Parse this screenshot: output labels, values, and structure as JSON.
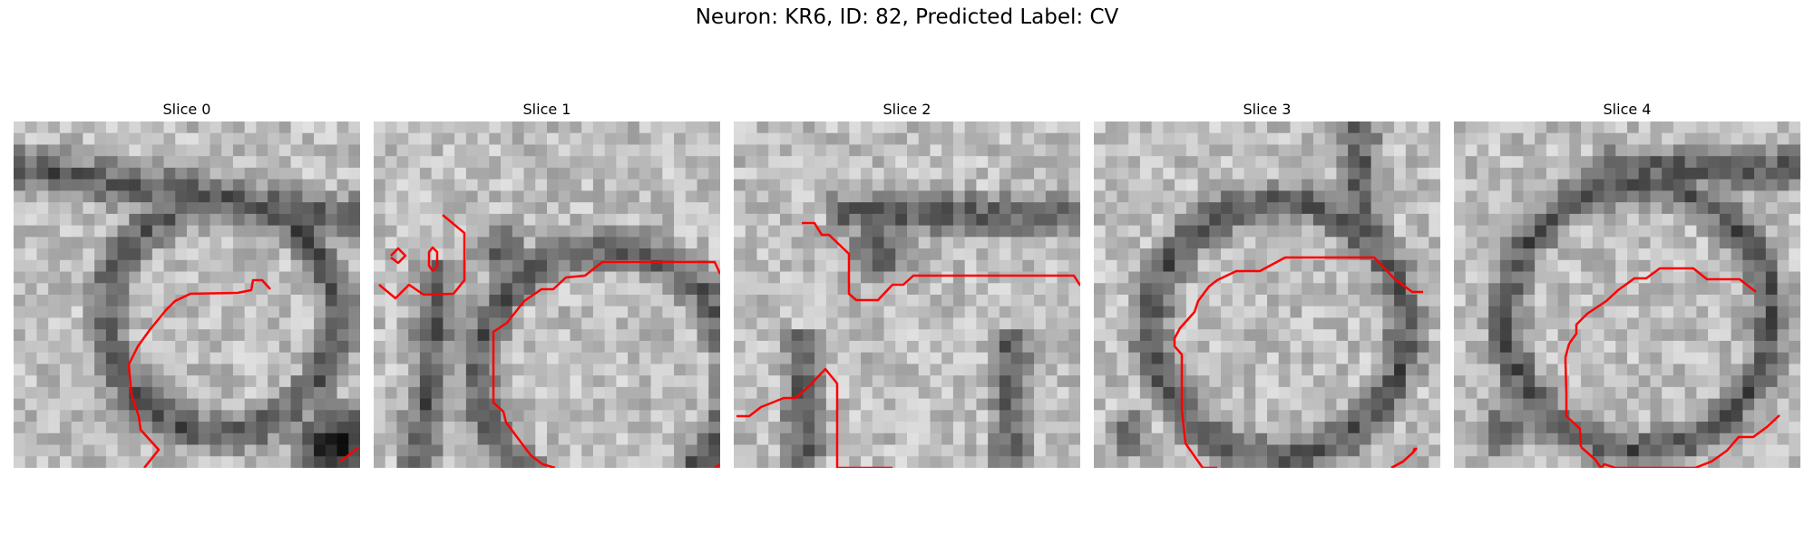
{
  "figure": {
    "title": "Neuron: KR6, ID: 82, Predicted Label: CV",
    "contour_color": "#ff0000",
    "colormap": "gray",
    "slices": [
      {
        "title": "Slice 0"
      },
      {
        "title": "Slice 1"
      },
      {
        "title": "Slice 2"
      },
      {
        "title": "Slice 3"
      },
      {
        "title": "Slice 4"
      }
    ]
  }
}
